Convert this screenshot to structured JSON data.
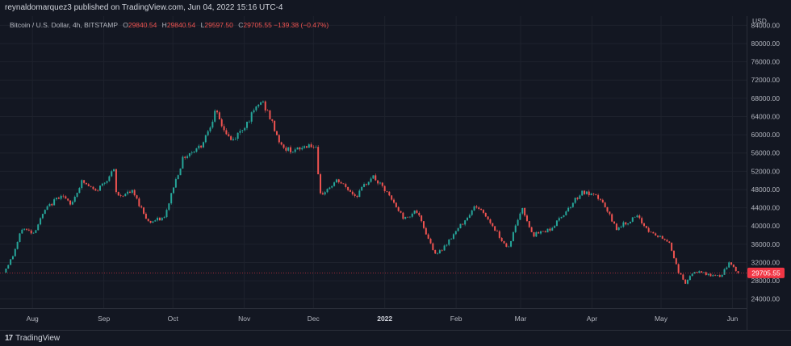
{
  "header": {
    "text": "reynaldomarquez3 published on TradingView.com, Jun 04, 2022 15:16 UTC-4"
  },
  "legend": {
    "symbol": "Bitcoin / U.S. Dollar, 4h, BITSTAMP",
    "o_label": "O",
    "o": "29840.54",
    "h_label": "H",
    "h": "29840.54",
    "l_label": "L",
    "l": "29597.50",
    "c_label": "C",
    "c": "29705.55",
    "change": "−139.38 (−0.47%)"
  },
  "footer": {
    "brand": "TradingView",
    "logo_glyph": "17"
  },
  "colors": {
    "up": "#26a69a",
    "down": "#ef5350",
    "bg": "#131722",
    "grid": "#1e222d",
    "axis_text": "#b2b5be",
    "price_label_bg": "#f23645"
  },
  "chart_data": {
    "type": "candlestick",
    "symbol": "Bitcoin / U.S. Dollar",
    "interval": "4h",
    "exchange": "BITSTAMP",
    "currency": "USD",
    "ylim": [
      22000,
      86000
    ],
    "y_ticks": [
      "24000.00",
      "28000.00",
      "32000.00",
      "36000.00",
      "40000.00",
      "44000.00",
      "48000.00",
      "52000.00",
      "56000.00",
      "60000.00",
      "64000.00",
      "68000.00",
      "72000.00",
      "76000.00",
      "80000.00",
      "84000.00"
    ],
    "x_range": [
      "2021-07-20",
      "2022-06-04"
    ],
    "x_ticks": [
      {
        "label": "Aug",
        "date": "2021-08-01",
        "year": false
      },
      {
        "label": "Sep",
        "date": "2021-09-01",
        "year": false
      },
      {
        "label": "Oct",
        "date": "2021-10-01",
        "year": false
      },
      {
        "label": "Nov",
        "date": "2021-11-01",
        "year": false
      },
      {
        "label": "Dec",
        "date": "2021-12-01",
        "year": false
      },
      {
        "label": "2022",
        "date": "2022-01-01",
        "year": true
      },
      {
        "label": "Feb",
        "date": "2022-02-01",
        "year": false
      },
      {
        "label": "Mar",
        "date": "2022-03-01",
        "year": false
      },
      {
        "label": "Apr",
        "date": "2022-04-01",
        "year": false
      },
      {
        "label": "May",
        "date": "2022-05-01",
        "year": false
      },
      {
        "label": "Jun",
        "date": "2022-06-01",
        "year": false
      }
    ],
    "last_price": 29705.55,
    "last_price_label": "29705.55",
    "price_path": [
      [
        "2021-07-20",
        29800
      ],
      [
        "2021-07-24",
        33500
      ],
      [
        "2021-07-28",
        39500
      ],
      [
        "2021-08-02",
        38500
      ],
      [
        "2021-08-07",
        43500
      ],
      [
        "2021-08-14",
        47000
      ],
      [
        "2021-08-18",
        44500
      ],
      [
        "2021-08-23",
        49800
      ],
      [
        "2021-08-29",
        47500
      ],
      [
        "2021-09-06",
        52200
      ],
      [
        "2021-09-07",
        46500
      ],
      [
        "2021-09-14",
        47500
      ],
      [
        "2021-09-21",
        40800
      ],
      [
        "2021-09-28",
        41800
      ],
      [
        "2021-10-01",
        47500
      ],
      [
        "2021-10-06",
        55000
      ],
      [
        "2021-10-14",
        57800
      ],
      [
        "2021-10-20",
        65000
      ],
      [
        "2021-10-24",
        60800
      ],
      [
        "2021-10-27",
        58500
      ],
      [
        "2021-11-01",
        61500
      ],
      [
        "2021-11-09",
        67500
      ],
      [
        "2021-11-12",
        64500
      ],
      [
        "2021-11-18",
        57000
      ],
      [
        "2021-11-24",
        56500
      ],
      [
        "2021-11-30",
        58000
      ],
      [
        "2021-12-03",
        56500
      ],
      [
        "2021-12-04",
        46500
      ],
      [
        "2021-12-12",
        50000
      ],
      [
        "2021-12-20",
        46500
      ],
      [
        "2021-12-27",
        51000
      ],
      [
        "2022-01-02",
        47500
      ],
      [
        "2022-01-10",
        41500
      ],
      [
        "2022-01-15",
        43500
      ],
      [
        "2022-01-22",
        35500
      ],
      [
        "2022-01-24",
        33500
      ],
      [
        "2022-02-01",
        38500
      ],
      [
        "2022-02-10",
        44500
      ],
      [
        "2022-02-14",
        42500
      ],
      [
        "2022-02-24",
        35000
      ],
      [
        "2022-03-02",
        44000
      ],
      [
        "2022-03-07",
        38000
      ],
      [
        "2022-03-15",
        39500
      ],
      [
        "2022-03-28",
        47500
      ],
      [
        "2022-04-05",
        46000
      ],
      [
        "2022-04-12",
        39500
      ],
      [
        "2022-04-21",
        42000
      ],
      [
        "2022-04-27",
        38500
      ],
      [
        "2022-05-05",
        36500
      ],
      [
        "2022-05-09",
        30000
      ],
      [
        "2022-05-12",
        27500
      ],
      [
        "2022-05-16",
        30000
      ],
      [
        "2022-05-27",
        28800
      ],
      [
        "2022-05-31",
        31800
      ],
      [
        "2022-06-04",
        29705
      ]
    ]
  }
}
